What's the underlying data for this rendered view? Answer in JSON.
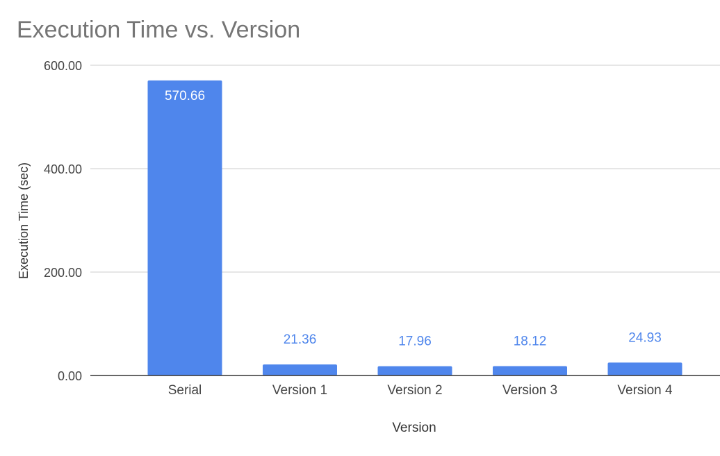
{
  "chart_data": {
    "type": "bar",
    "title": "Execution Time vs. Version",
    "xlabel": "Version",
    "ylabel": "Execution Time (sec)",
    "categories": [
      "Serial",
      "Version 1",
      "Version 2",
      "Version 3",
      "Version 4"
    ],
    "values": [
      570.66,
      21.36,
      17.96,
      18.12,
      24.93
    ],
    "data_labels": [
      "570.66",
      "21.36",
      "17.96",
      "18.12",
      "24.93"
    ],
    "yticks": [
      0,
      200,
      400,
      600
    ],
    "ytick_labels": [
      "0.00",
      "200.00",
      "400.00",
      "600.00"
    ],
    "ylim": [
      0,
      600
    ],
    "grid": true,
    "legend": "none",
    "colors": {
      "bar": "#4f86ec",
      "label_inside": "#ffffff",
      "label_outside": "#4f86ec",
      "title": "#757575",
      "axis_text": "#444444",
      "gridline": "#cccccc",
      "baseline": "#333333"
    }
  }
}
